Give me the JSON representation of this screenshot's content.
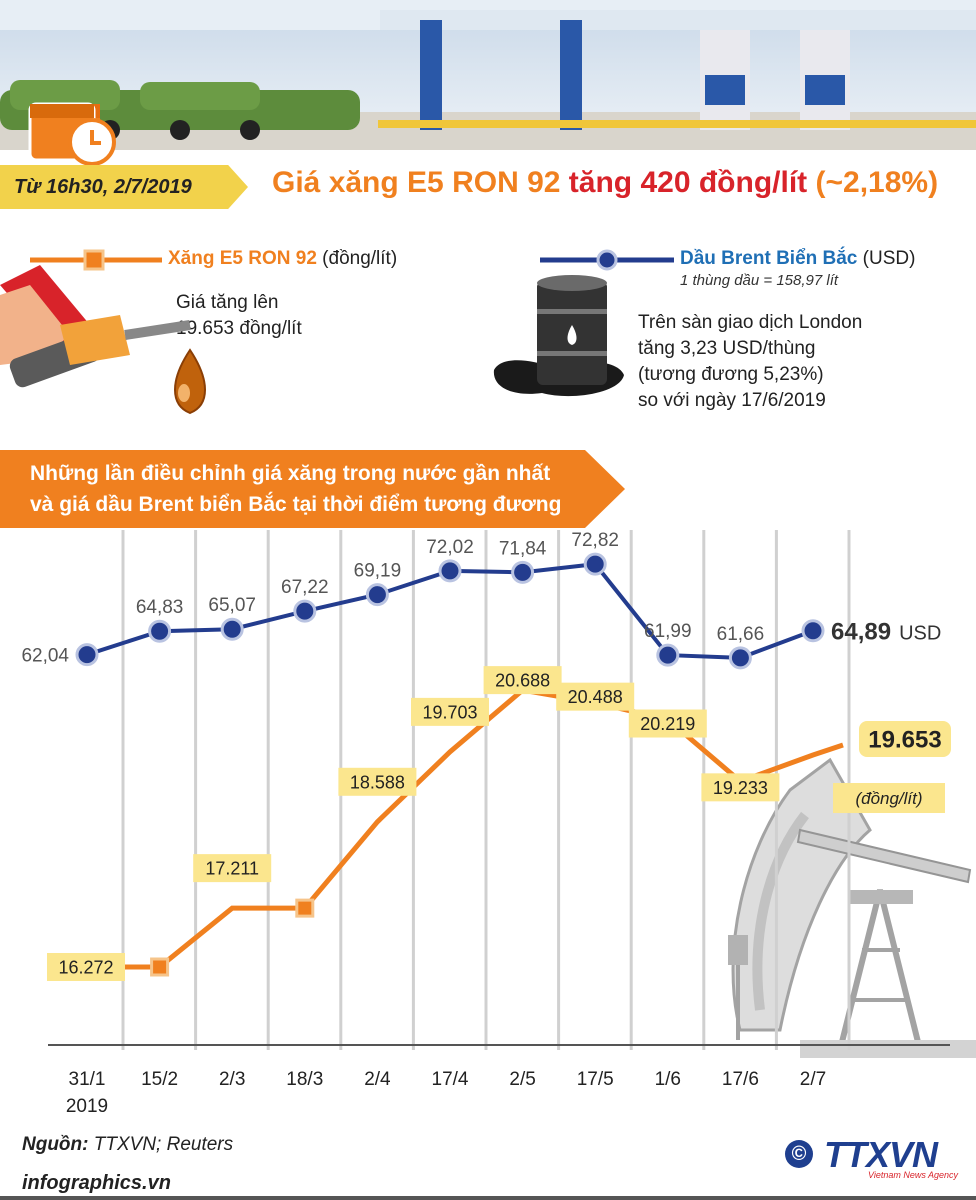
{
  "header": {
    "date_tag": "Từ 16h30, 2/7/2019",
    "headline_part1": "Giá xăng E5 RON 92",
    "headline_part2": "tăng 420 đồng/lít",
    "headline_part3": "(~2,18%)"
  },
  "legend": {
    "gas_name": "Xăng E5 RON 92",
    "gas_unit": "(đồng/lít)",
    "gas_note_line1": "Giá tăng lên",
    "gas_note_line2": "19.653 đồng/lít",
    "oil_name": "Dầu Brent Biển Bắc",
    "oil_unit": "(USD)",
    "oil_barrel_note": "1 thùng dầu = 158,97 lít",
    "oil_note_line1": "Trên sàn giao dịch London",
    "oil_note_line2": "tăng 3,23 USD/thùng",
    "oil_note_line3": "(tương đương 5,23%)",
    "oil_note_line4": "so với ngày 17/6/2019"
  },
  "section": {
    "title_line1": "Những lần điều chỉnh giá xăng trong nước gần nhất",
    "title_line2": "và giá dầu Brent biển Bắc tại thời điểm tương đương"
  },
  "chart_data": {
    "type": "line",
    "categories": [
      "31/1",
      "15/2",
      "2/3",
      "18/3",
      "2/4",
      "17/4",
      "2/5",
      "17/5",
      "1/6",
      "17/6",
      "2/7"
    ],
    "category_sub": [
      "2019",
      "",
      "",
      "",
      "",
      "",
      "",
      "",
      "",
      "",
      ""
    ],
    "series": [
      {
        "name": "Dầu Brent Biển Bắc",
        "values": [
          62.04,
          64.83,
          65.07,
          67.22,
          69.19,
          72.02,
          71.84,
          72.82,
          61.99,
          61.66,
          64.89
        ],
        "labels": [
          "62,04",
          "64,83",
          "65,07",
          "67,22",
          "69,19",
          "72,02",
          "71,84",
          "72,82",
          "61,99",
          "61,66",
          "64,89"
        ],
        "color": "#233c8e"
      },
      {
        "name": "Xăng E5 RON 92",
        "values": [
          16272,
          16272,
          17211,
          17211,
          18588,
          19703,
          20688,
          20488,
          20219,
          19233,
          19653
        ],
        "labels": [
          "16.272",
          "",
          "17.211",
          "",
          "18.588",
          "19.703",
          "20.688",
          "20.488",
          "20.219",
          "19.233",
          "19.653"
        ],
        "color": "#f0801f"
      }
    ],
    "last_label_unit_oil": "USD",
    "last_label_unit_gas": "(đồng/lít)",
    "label_bg": "#fbe68e",
    "grid": true
  },
  "footer": {
    "source_label": "Nguồn:",
    "source_text": "TTXVN; Reuters",
    "site": "infographics.vn",
    "copyright": "©",
    "brand": "TTXVN",
    "brand_sub": "Vietnam News Agency"
  }
}
